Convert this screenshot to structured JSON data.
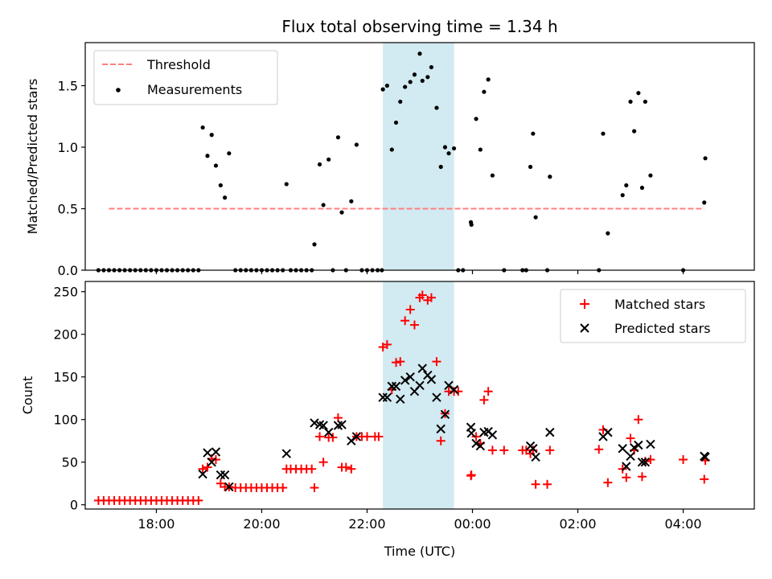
{
  "chart_data": [
    {
      "type": "scatter",
      "title": "Flux total observing time = 1.34 h",
      "xlabel": "",
      "ylabel": "Matched/Predicted stars",
      "ylim": [
        0,
        1.85
      ],
      "yticks": [
        0.0,
        0.5,
        1.0,
        1.5
      ],
      "ytick_labels": [
        "0.0",
        "0.5",
        "1.0",
        "1.5"
      ],
      "xlim_hours": [
        16.65,
        29.35
      ],
      "shaded_span_hours": [
        22.3,
        23.65
      ],
      "shade_color": "#add8e6",
      "legend_position": "upper-left",
      "threshold": {
        "name": "Threshold",
        "value": 0.5,
        "x_range_hours": [
          17.1,
          28.4
        ],
        "color": "#ff7f7f",
        "style": "dashed"
      },
      "series": [
        {
          "name": "Measurements",
          "color": "#000000",
          "marker": "dot",
          "points": [
            [
              16.9,
              0
            ],
            [
              17.0,
              0
            ],
            [
              17.1,
              0
            ],
            [
              17.2,
              0
            ],
            [
              17.3,
              0
            ],
            [
              17.4,
              0
            ],
            [
              17.5,
              0
            ],
            [
              17.6,
              0
            ],
            [
              17.7,
              0
            ],
            [
              17.8,
              0
            ],
            [
              17.9,
              0
            ],
            [
              18.0,
              0
            ],
            [
              18.1,
              0
            ],
            [
              18.2,
              0
            ],
            [
              18.3,
              0
            ],
            [
              18.4,
              0
            ],
            [
              18.5,
              0
            ],
            [
              18.6,
              0
            ],
            [
              18.7,
              0
            ],
            [
              18.8,
              0
            ],
            [
              18.88,
              1.16
            ],
            [
              18.97,
              0.93
            ],
            [
              19.05,
              1.1
            ],
            [
              19.13,
              0.85
            ],
            [
              19.22,
              0.69
            ],
            [
              19.3,
              0.59
            ],
            [
              19.38,
              0.95
            ],
            [
              19.5,
              0
            ],
            [
              19.6,
              0
            ],
            [
              19.7,
              0
            ],
            [
              19.8,
              0
            ],
            [
              19.9,
              0
            ],
            [
              20.0,
              0
            ],
            [
              20.1,
              0
            ],
            [
              20.2,
              0
            ],
            [
              20.3,
              0
            ],
            [
              20.4,
              0
            ],
            [
              20.47,
              0.7
            ],
            [
              20.55,
              0
            ],
            [
              20.65,
              0
            ],
            [
              20.75,
              0
            ],
            [
              20.85,
              0
            ],
            [
              20.95,
              0
            ],
            [
              21.0,
              0.21
            ],
            [
              21.1,
              0.86
            ],
            [
              21.17,
              0.53
            ],
            [
              21.27,
              0.9
            ],
            [
              21.35,
              0
            ],
            [
              21.45,
              1.08
            ],
            [
              21.52,
              0.47
            ],
            [
              21.6,
              0
            ],
            [
              21.7,
              0.56
            ],
            [
              21.8,
              1.02
            ],
            [
              21.9,
              0
            ],
            [
              22.0,
              0
            ],
            [
              22.1,
              0
            ],
            [
              22.2,
              0
            ],
            [
              22.28,
              0
            ],
            [
              22.3,
              1.47
            ],
            [
              22.38,
              1.5
            ],
            [
              22.47,
              0.98
            ],
            [
              22.55,
              1.2
            ],
            [
              22.63,
              1.37
            ],
            [
              22.72,
              1.49
            ],
            [
              22.82,
              1.53
            ],
            [
              22.9,
              1.59
            ],
            [
              23.0,
              1.76
            ],
            [
              23.05,
              1.54
            ],
            [
              23.15,
              1.57
            ],
            [
              23.22,
              1.65
            ],
            [
              23.32,
              1.32
            ],
            [
              23.4,
              0.84
            ],
            [
              23.48,
              1.0
            ],
            [
              23.55,
              0.95
            ],
            [
              23.65,
              0.99
            ],
            [
              23.73,
              0
            ],
            [
              23.82,
              0
            ],
            [
              23.97,
              0.39
            ],
            [
              23.98,
              0.37
            ],
            [
              24.07,
              1.23
            ],
            [
              24.15,
              0.98
            ],
            [
              24.22,
              1.45
            ],
            [
              24.3,
              1.55
            ],
            [
              24.38,
              0.77
            ],
            [
              24.6,
              0
            ],
            [
              24.95,
              0
            ],
            [
              25.02,
              0
            ],
            [
              25.1,
              0.84
            ],
            [
              25.15,
              1.11
            ],
            [
              25.2,
              0.43
            ],
            [
              25.42,
              0
            ],
            [
              25.47,
              0.76
            ],
            [
              26.4,
              0
            ],
            [
              26.48,
              1.11
            ],
            [
              26.57,
              0.3
            ],
            [
              26.85,
              0.61
            ],
            [
              26.92,
              0.69
            ],
            [
              27.0,
              1.37
            ],
            [
              27.07,
              1.13
            ],
            [
              27.15,
              1.44
            ],
            [
              27.22,
              0.67
            ],
            [
              27.28,
              1.37
            ],
            [
              27.38,
              0.77
            ],
            [
              28.0,
              0
            ],
            [
              28.4,
              0.55
            ],
            [
              28.42,
              0.91
            ]
          ]
        }
      ]
    },
    {
      "type": "scatter",
      "xlabel": "Time (UTC)",
      "ylabel": "Count",
      "ylim": [
        -5,
        262
      ],
      "yticks": [
        0,
        50,
        100,
        150,
        200,
        250
      ],
      "ytick_labels": [
        "0",
        "50",
        "100",
        "150",
        "200",
        "250"
      ],
      "xlim_hours": [
        16.65,
        29.35
      ],
      "xticks_hours": [
        18,
        20,
        22,
        24,
        26,
        28
      ],
      "xtick_labels": [
        "18:00",
        "20:00",
        "22:00",
        "00:00",
        "02:00",
        "04:00"
      ],
      "shaded_span_hours": [
        22.3,
        23.65
      ],
      "shade_color": "#add8e6",
      "legend_position": "upper-right",
      "series": [
        {
          "name": "Matched stars",
          "color": "#ff0000",
          "marker": "plus",
          "points": [
            [
              16.9,
              5
            ],
            [
              17.0,
              5
            ],
            [
              17.1,
              5
            ],
            [
              17.2,
              5
            ],
            [
              17.3,
              5
            ],
            [
              17.4,
              5
            ],
            [
              17.5,
              5
            ],
            [
              17.6,
              5
            ],
            [
              17.7,
              5
            ],
            [
              17.8,
              5
            ],
            [
              17.9,
              5
            ],
            [
              18.0,
              5
            ],
            [
              18.1,
              5
            ],
            [
              18.2,
              5
            ],
            [
              18.3,
              5
            ],
            [
              18.4,
              5
            ],
            [
              18.5,
              5
            ],
            [
              18.6,
              5
            ],
            [
              18.7,
              5
            ],
            [
              18.8,
              5
            ],
            [
              18.88,
              42
            ],
            [
              18.97,
              44
            ],
            [
              19.05,
              54
            ],
            [
              19.13,
              53
            ],
            [
              19.22,
              25
            ],
            [
              19.3,
              21
            ],
            [
              19.38,
              21
            ],
            [
              19.5,
              20
            ],
            [
              19.6,
              20
            ],
            [
              19.7,
              20
            ],
            [
              19.8,
              20
            ],
            [
              19.9,
              20
            ],
            [
              20.0,
              20
            ],
            [
              20.1,
              20
            ],
            [
              20.2,
              20
            ],
            [
              20.3,
              20
            ],
            [
              20.4,
              20
            ],
            [
              20.47,
              42
            ],
            [
              20.55,
              42
            ],
            [
              20.65,
              42
            ],
            [
              20.75,
              42
            ],
            [
              20.85,
              42
            ],
            [
              20.95,
              42
            ],
            [
              21.0,
              20
            ],
            [
              21.1,
              80
            ],
            [
              21.17,
              50
            ],
            [
              21.27,
              79
            ],
            [
              21.35,
              79
            ],
            [
              21.45,
              102
            ],
            [
              21.52,
              44
            ],
            [
              21.6,
              44
            ],
            [
              21.7,
              42
            ],
            [
              21.8,
              80
            ],
            [
              21.9,
              80
            ],
            [
              22.0,
              80
            ],
            [
              22.15,
              80
            ],
            [
              22.22,
              80
            ],
            [
              22.3,
              185
            ],
            [
              22.38,
              188
            ],
            [
              22.47,
              135
            ],
            [
              22.55,
              167
            ],
            [
              22.63,
              168
            ],
            [
              22.72,
              216
            ],
            [
              22.82,
              229
            ],
            [
              22.9,
              211
            ],
            [
              23.0,
              243
            ],
            [
              23.05,
              246
            ],
            [
              23.15,
              240
            ],
            [
              23.22,
              243
            ],
            [
              23.32,
              168
            ],
            [
              23.4,
              75
            ],
            [
              23.48,
              107
            ],
            [
              23.55,
              133
            ],
            [
              23.65,
              133
            ],
            [
              23.73,
              133
            ],
            [
              23.97,
              34
            ],
            [
              23.98,
              35
            ],
            [
              24.07,
              80
            ],
            [
              24.15,
              72
            ],
            [
              24.22,
              123
            ],
            [
              24.3,
              133
            ],
            [
              24.38,
              64
            ],
            [
              24.6,
              64
            ],
            [
              24.95,
              64
            ],
            [
              25.02,
              64
            ],
            [
              25.1,
              60
            ],
            [
              25.15,
              64
            ],
            [
              25.2,
              24
            ],
            [
              25.42,
              24
            ],
            [
              25.47,
              64
            ],
            [
              26.4,
              65
            ],
            [
              26.48,
              88
            ],
            [
              26.57,
              26
            ],
            [
              26.85,
              42
            ],
            [
              26.92,
              32
            ],
            [
              27.0,
              78
            ],
            [
              27.07,
              64
            ],
            [
              27.15,
              100
            ],
            [
              27.22,
              33
            ],
            [
              27.28,
              51
            ],
            [
              27.38,
              53
            ],
            [
              28.0,
              53
            ],
            [
              28.4,
              30
            ],
            [
              28.42,
              52
            ]
          ]
        },
        {
          "name": "Predicted stars",
          "color": "#000000",
          "marker": "x",
          "points": [
            [
              18.88,
              36
            ],
            [
              18.97,
              61
            ],
            [
              19.05,
              50
            ],
            [
              19.13,
              62
            ],
            [
              19.22,
              35
            ],
            [
              19.3,
              35
            ],
            [
              19.38,
              21
            ],
            [
              20.47,
              60
            ],
            [
              21.0,
              96
            ],
            [
              21.1,
              94
            ],
            [
              21.17,
              93
            ],
            [
              21.27,
              85
            ],
            [
              21.45,
              93
            ],
            [
              21.52,
              94
            ],
            [
              21.7,
              75
            ],
            [
              21.8,
              80
            ],
            [
              22.3,
              126
            ],
            [
              22.38,
              126
            ],
            [
              22.47,
              139
            ],
            [
              22.55,
              139
            ],
            [
              22.63,
              124
            ],
            [
              22.72,
              146
            ],
            [
              22.82,
              150
            ],
            [
              22.9,
              133
            ],
            [
              23.0,
              140
            ],
            [
              23.05,
              160
            ],
            [
              23.15,
              152
            ],
            [
              23.22,
              147
            ],
            [
              23.32,
              126
            ],
            [
              23.4,
              89
            ],
            [
              23.48,
              106
            ],
            [
              23.55,
              140
            ],
            [
              23.65,
              135
            ],
            [
              23.97,
              91
            ],
            [
              23.98,
              84
            ],
            [
              24.07,
              72
            ],
            [
              24.15,
              69
            ],
            [
              24.22,
              85
            ],
            [
              24.3,
              86
            ],
            [
              24.38,
              82
            ],
            [
              25.1,
              69
            ],
            [
              25.15,
              66
            ],
            [
              25.2,
              56
            ],
            [
              25.47,
              85
            ],
            [
              26.48,
              80
            ],
            [
              26.57,
              85
            ],
            [
              26.85,
              66
            ],
            [
              26.92,
              45
            ],
            [
              27.0,
              57
            ],
            [
              27.07,
              67
            ],
            [
              27.15,
              70
            ],
            [
              27.22,
              50
            ],
            [
              27.28,
              50
            ],
            [
              27.38,
              71
            ],
            [
              28.4,
              57
            ],
            [
              28.42,
              56
            ]
          ]
        }
      ]
    }
  ]
}
